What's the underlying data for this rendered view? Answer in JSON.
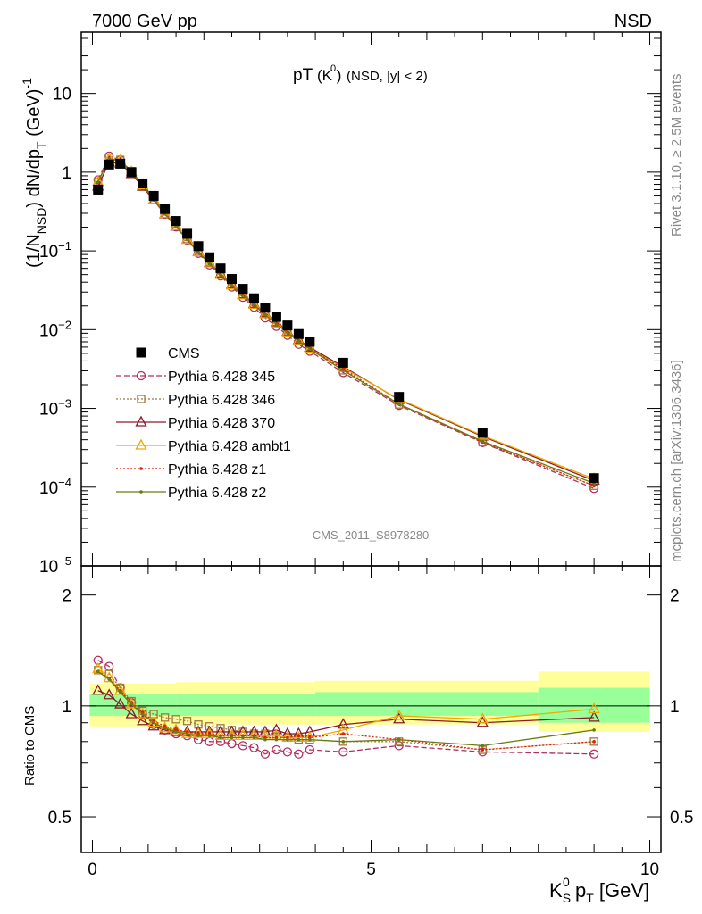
{
  "header": {
    "left": "7000 GeV pp",
    "right": "NSD"
  },
  "side_labels": {
    "rivet": "Rivet 3.1.10, ≥ 2.5M events",
    "mcplots": "mcplots.cern.ch [arXiv:1306.3436]"
  },
  "watermark": "CMS_2011_S8978280",
  "plot_title": {
    "main": "pT",
    "particle": "(K )",
    "sup": "0",
    "cut": " (NSD, |y| < 2)"
  },
  "y_axis_upper": {
    "p1": "(1/N",
    "sub1": "NSD",
    "p2": ") dN/dp",
    "sub2": "T",
    "p3": " (GeV)",
    "sup": "-1"
  },
  "y_axis_lower": "Ratio to CMS",
  "x_axis": {
    "k": "K",
    "sub": "S",
    "sup": "0",
    "p": " p",
    "sub2": "T",
    "unit": " [GeV]"
  },
  "upper_tick_labels": [
    {
      "v": 10,
      "base": "10",
      "exp": ""
    },
    {
      "v": 1,
      "base": "1",
      "exp": ""
    },
    {
      "v": 0.1,
      "base": "10",
      "exp": "−1"
    },
    {
      "v": 0.01,
      "base": "10",
      "exp": "−2"
    },
    {
      "v": 0.001,
      "base": "10",
      "exp": "−3"
    },
    {
      "v": 0.0001,
      "base": "10",
      "exp": "−4"
    },
    {
      "v": 1e-05,
      "base": "10",
      "exp": "−5"
    }
  ],
  "lower_tick_labels": [
    {
      "v": 2,
      "t": "2"
    },
    {
      "v": 1,
      "t": "1"
    },
    {
      "v": 0.5,
      "t": "0.5"
    }
  ],
  "x_tick_labels": [
    {
      "v": 0,
      "t": "0"
    },
    {
      "v": 5,
      "t": "5"
    },
    {
      "v": 10,
      "t": "10"
    }
  ],
  "colors": {
    "cms": "#000000",
    "p345": "#b03060",
    "p346": "#a0783c",
    "p370": "#8b1a2a",
    "ambt1": "#f0a800",
    "z1": "#dd2200",
    "z2": "#6b7a10",
    "band_yellow": "#ffff99",
    "band_green": "#99ff99"
  },
  "chart_data": {
    "type": "scatter",
    "x_scale": "linear",
    "upper": {
      "y_scale": "log",
      "ylim": [
        1e-05,
        60
      ]
    },
    "lower": {
      "y_scale": "log",
      "ylim": [
        0.4,
        2.4
      ]
    },
    "xlim": [
      -0.2,
      10.2
    ],
    "x": [
      0.1,
      0.3,
      0.5,
      0.7,
      0.9,
      1.1,
      1.3,
      1.5,
      1.7,
      1.9,
      2.1,
      2.3,
      2.5,
      2.7,
      2.9,
      3.1,
      3.3,
      3.5,
      3.7,
      3.9,
      4.5,
      5.5,
      7.0,
      9.0
    ],
    "series": [
      {
        "key": "cms",
        "name": "CMS",
        "values": [
          0.6,
          1.25,
          1.28,
          1.0,
          0.72,
          0.5,
          0.34,
          0.24,
          0.165,
          0.115,
          0.083,
          0.06,
          0.044,
          0.033,
          0.025,
          0.019,
          0.0145,
          0.0113,
          0.0088,
          0.007,
          0.0038,
          0.0014,
          0.00049,
          0.00013
        ]
      },
      {
        "key": "p345",
        "name": "Pythia 6.428 345",
        "style": "dashed",
        "marker": "circle",
        "ratio": [
          1.33,
          1.28,
          1.12,
          1.02,
          0.95,
          0.89,
          0.86,
          0.84,
          0.83,
          0.81,
          0.8,
          0.8,
          0.79,
          0.78,
          0.77,
          0.74,
          0.76,
          0.75,
          0.74,
          0.76,
          0.75,
          0.78,
          0.75,
          0.74
        ]
      },
      {
        "key": "p346",
        "name": "Pythia 6.428 346",
        "style": "dotted",
        "marker": "square",
        "ratio": [
          1.25,
          1.22,
          1.12,
          1.03,
          0.97,
          0.95,
          0.93,
          0.92,
          0.91,
          0.89,
          0.88,
          0.87,
          0.86,
          0.85,
          0.84,
          0.84,
          0.83,
          0.82,
          0.81,
          0.81,
          0.8,
          0.8,
          0.76,
          0.8
        ]
      },
      {
        "key": "p370",
        "name": "Pythia 6.428 370",
        "style": "solid",
        "marker": "triangle",
        "ratio": [
          1.1,
          1.07,
          1.01,
          0.95,
          0.91,
          0.88,
          0.86,
          0.85,
          0.85,
          0.85,
          0.85,
          0.85,
          0.85,
          0.85,
          0.85,
          0.85,
          0.86,
          0.84,
          0.84,
          0.85,
          0.89,
          0.92,
          0.9,
          0.93
        ]
      },
      {
        "key": "ambt1",
        "name": "Pythia 6.428 ambt1",
        "style": "solid",
        "marker": "triangle",
        "ratio": [
          1.26,
          1.19,
          1.1,
          1.01,
          0.95,
          0.9,
          0.87,
          0.86,
          0.84,
          0.84,
          0.84,
          0.83,
          0.83,
          0.83,
          0.83,
          0.83,
          0.83,
          0.82,
          0.82,
          0.82,
          0.86,
          0.94,
          0.92,
          0.98
        ]
      },
      {
        "key": "z1",
        "name": "Pythia 6.428 z1",
        "style": "dotted",
        "marker": "dot",
        "ratio": [
          1.24,
          1.19,
          1.1,
          1.02,
          0.96,
          0.91,
          0.88,
          0.86,
          0.85,
          0.84,
          0.84,
          0.83,
          0.83,
          0.83,
          0.83,
          0.82,
          0.82,
          0.82,
          0.83,
          0.82,
          0.84,
          0.81,
          0.76,
          0.8
        ]
      },
      {
        "key": "z2",
        "name": "Pythia 6.428 z2",
        "style": "solid",
        "marker": "dot",
        "ratio": [
          1.24,
          1.18,
          1.09,
          1.01,
          0.95,
          0.9,
          0.87,
          0.85,
          0.84,
          0.83,
          0.83,
          0.82,
          0.82,
          0.82,
          0.82,
          0.81,
          0.81,
          0.81,
          0.81,
          0.81,
          0.8,
          0.81,
          0.78,
          0.86
        ]
      }
    ],
    "bands": {
      "yellow": [
        [
          -0.05,
          1.5,
          0.88,
          1.15
        ],
        [
          1.5,
          4.0,
          0.89,
          1.16
        ],
        [
          4.0,
          8.0,
          0.89,
          1.17
        ],
        [
          8.0,
          10.0,
          0.85,
          1.24
        ]
      ],
      "green": [
        [
          -0.05,
          1.5,
          0.94,
          1.08
        ],
        [
          1.5,
          4.0,
          0.94,
          1.08
        ],
        [
          4.0,
          8.0,
          0.94,
          1.09
        ],
        [
          8.0,
          10.0,
          0.9,
          1.12
        ]
      ]
    }
  }
}
